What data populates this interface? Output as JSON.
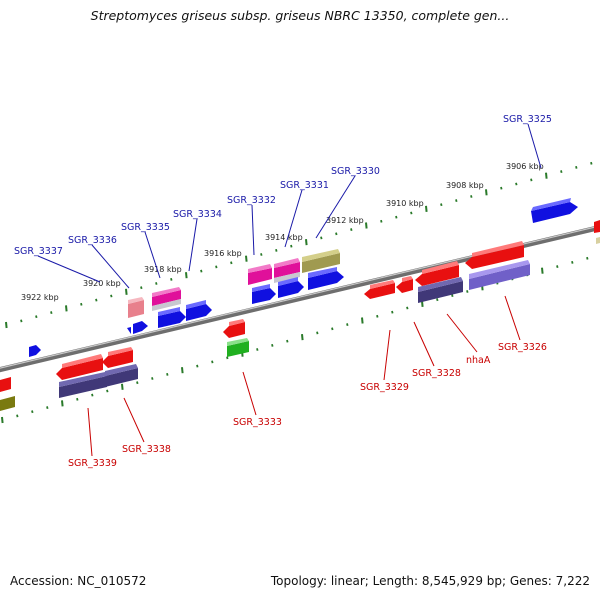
{
  "title": "Streptomyces griseus subsp. griseus NBRC 13350, complete gen...",
  "footer": {
    "accession": "Accession: NC_010572",
    "summary": "Topology: linear; Length: 8,545,929 bp; Genes: 7,222"
  },
  "colors": {
    "forward_gene": "#1010e0",
    "reverse_gene": "#e81010",
    "forward_label": "#1a1aa8",
    "reverse_label": "#c80000",
    "ruler_tick": "#2a7a2a",
    "backbone": "#8a8a8a"
  },
  "scale": {
    "ticks": [
      {
        "label": "3906 kbp"
      },
      {
        "label": "3908 kbp"
      },
      {
        "label": "3910 kbp"
      },
      {
        "label": "3912 kbp"
      },
      {
        "label": "3914 kbp"
      },
      {
        "label": "3916 kbp"
      },
      {
        "label": "3918 kbp"
      },
      {
        "label": "3920 kbp"
      },
      {
        "label": "3922 kbp"
      }
    ]
  },
  "genes": {
    "top": [
      {
        "label": "SGR_3325"
      },
      {
        "label": "SGR_3330"
      },
      {
        "label": "SGR_3331"
      },
      {
        "label": "SGR_3332"
      },
      {
        "label": "SGR_3334"
      },
      {
        "label": "SGR_3335"
      },
      {
        "label": "SGR_3336"
      },
      {
        "label": "SGR_3337"
      }
    ],
    "bottom": [
      {
        "label": "SGR_3326"
      },
      {
        "label": "nhaA"
      },
      {
        "label": "SGR_3328"
      },
      {
        "label": "SGR_3329"
      },
      {
        "label": "SGR_3333"
      },
      {
        "label": "SGR_3338"
      },
      {
        "label": "SGR_3339"
      }
    ]
  }
}
